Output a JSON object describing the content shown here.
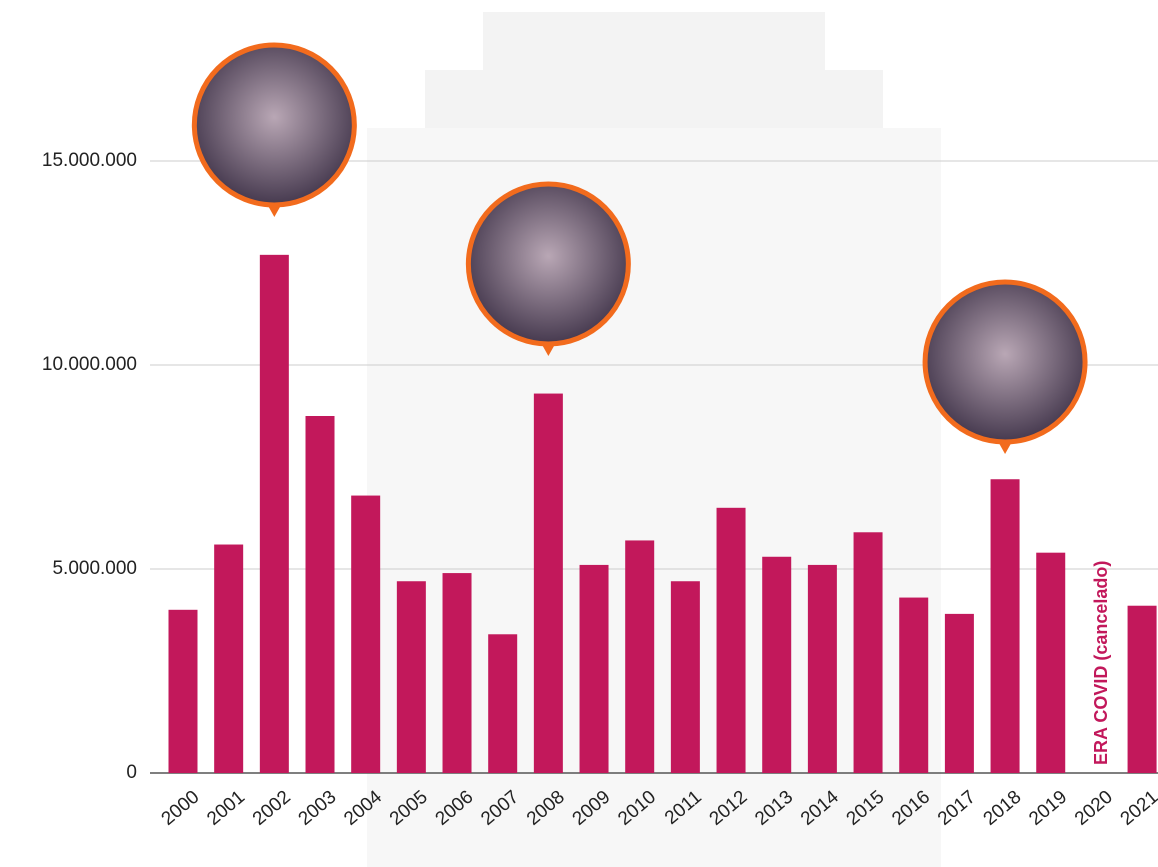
{
  "chart_data": {
    "type": "bar",
    "categories": [
      "2000",
      "2001",
      "2002",
      "2003",
      "2004",
      "2005",
      "2006",
      "2007",
      "2008",
      "2009",
      "2010",
      "2011",
      "2012",
      "2013",
      "2014",
      "2015",
      "2016",
      "2017",
      "2018",
      "2019",
      "2020",
      "2021"
    ],
    "values": [
      4000000,
      5600000,
      12700000,
      8750000,
      6800000,
      4700000,
      4900000,
      3400000,
      9300000,
      5100000,
      5700000,
      4700000,
      6500000,
      5300000,
      5100000,
      5900000,
      4300000,
      3900000,
      7200000,
      5400000,
      null,
      4100000
    ],
    "color": "#c2185b",
    "ylim": [
      0,
      18000000
    ],
    "yticks": [
      0,
      {
        "value": 5000000,
        "label": "5.000.000"
      },
      {
        "value": 10000000,
        "label": "10.000.000"
      },
      {
        "value": 15000000,
        "label": "15.000.000"
      }
    ],
    "grid": true,
    "annotation": "ERA COVID (cancelado)"
  }
}
